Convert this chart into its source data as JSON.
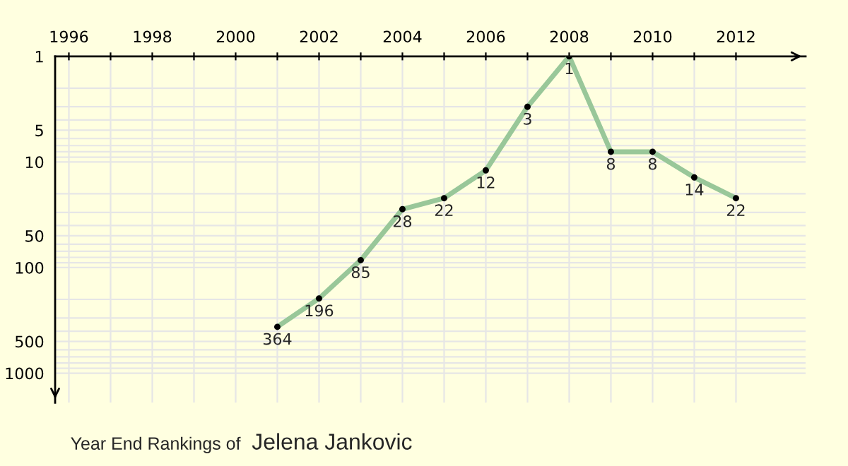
{
  "chart_data": {
    "type": "line",
    "title": "Year End Rankings of",
    "subtitle": "Jelena Jankovic",
    "x": [
      2001,
      2002,
      2003,
      2004,
      2005,
      2006,
      2007,
      2008,
      2009,
      2010,
      2011,
      2012
    ],
    "series": [
      {
        "color": "#99c799",
        "values": [
          364,
          196,
          85,
          28,
          22,
          12,
          3,
          1,
          8,
          8,
          14,
          22
        ]
      }
    ],
    "data_labels": true,
    "log": true,
    "marker": "circle",
    "line_style": "solid",
    "grid": true,
    "xlim": [
      1995.67,
      2013.67
    ],
    "xticks": [
      1996,
      {
        "value": 1997,
        "label": null
      },
      1998,
      {
        "value": 1999,
        "label": null
      },
      2000,
      {
        "value": 2001,
        "label": null
      },
      2002,
      {
        "value": 2003,
        "label": null
      },
      2004,
      {
        "value": 2005,
        "label": null
      },
      2006,
      {
        "value": 2007,
        "label": null
      },
      2008,
      {
        "value": 2009,
        "label": null
      },
      2010,
      {
        "value": 2011,
        "label": null
      },
      2012
    ],
    "ylim": [
      1900,
      1
    ],
    "yticks": [
      1,
      5,
      10,
      50,
      100,
      500,
      1000
    ]
  }
}
